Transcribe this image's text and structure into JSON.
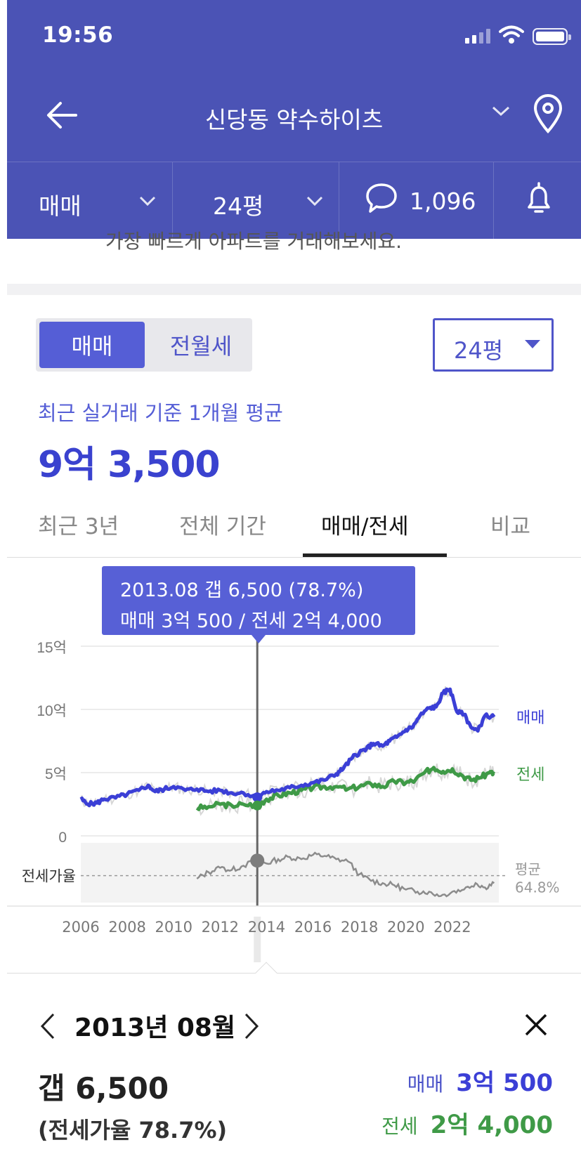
{
  "status_bar": {
    "time": "19:56"
  },
  "header": {
    "title": "신당동 약수하이츠",
    "filters": {
      "deal_type": "매매",
      "size": "24평",
      "comments": "1,096"
    }
  },
  "banner_text": "가장 빠르게 아파트를 거래해보세요.",
  "toggle": {
    "active": "매매",
    "inactive": "전월세"
  },
  "size_select": "24평",
  "summary": {
    "caption": "최근 실거래 기준 1개월 평균",
    "price": "9억 3,500"
  },
  "tabs": [
    "최근 3년",
    "전체 기간",
    "매매/전세",
    "비교"
  ],
  "active_tab": "매매/전세",
  "tooltip": {
    "line1": "2013.08  갭 6,500 (78.7%)",
    "line2": "매매 3억 500 / 전세 2억 4,000"
  },
  "colors": {
    "sale": "#3b3fd6",
    "jeonse": "#3f9a47",
    "ratio": "#8c8c8c",
    "accent": "#4b53b5"
  },
  "chart_data": {
    "type": "line",
    "y_tick_labels": [
      "15억",
      "10억",
      "5억",
      "0"
    ],
    "ylim": [
      0,
      15
    ],
    "x_tick_labels": [
      "2006",
      "2008",
      "2010",
      "2012",
      "2014",
      "2016",
      "2018",
      "2020",
      "2022"
    ],
    "xlim": [
      2006.0,
      2024.0
    ],
    "series": [
      {
        "name": "매매",
        "unit": "억",
        "points": [
          [
            2006.0,
            2.9
          ],
          [
            2006.3,
            2.5
          ],
          [
            2006.7,
            2.6
          ],
          [
            2007.0,
            2.9
          ],
          [
            2007.5,
            3.0
          ],
          [
            2008.0,
            3.3
          ],
          [
            2008.5,
            3.6
          ],
          [
            2008.9,
            4.0
          ],
          [
            2009.2,
            3.5
          ],
          [
            2009.6,
            3.7
          ],
          [
            2010.0,
            3.9
          ],
          [
            2010.5,
            3.6
          ],
          [
            2011.0,
            3.7
          ],
          [
            2011.5,
            3.5
          ],
          [
            2012.0,
            3.6
          ],
          [
            2012.5,
            3.4
          ],
          [
            2013.0,
            3.4
          ],
          [
            2013.6,
            3.05
          ],
          [
            2014.0,
            3.5
          ],
          [
            2014.5,
            3.6
          ],
          [
            2015.0,
            3.8
          ],
          [
            2015.5,
            4.0
          ],
          [
            2016.0,
            4.2
          ],
          [
            2016.5,
            4.4
          ],
          [
            2017.0,
            4.9
          ],
          [
            2017.3,
            5.3
          ],
          [
            2017.7,
            6.2
          ],
          [
            2018.0,
            6.6
          ],
          [
            2018.3,
            6.9
          ],
          [
            2018.6,
            7.3
          ],
          [
            2019.0,
            7.1
          ],
          [
            2019.3,
            7.5
          ],
          [
            2019.6,
            7.8
          ],
          [
            2020.0,
            8.4
          ],
          [
            2020.3,
            8.6
          ],
          [
            2020.6,
            9.5
          ],
          [
            2021.0,
            10.1
          ],
          [
            2021.3,
            10.2
          ],
          [
            2021.6,
            11.3
          ],
          [
            2021.9,
            11.6
          ],
          [
            2022.2,
            9.8
          ],
          [
            2022.5,
            9.6
          ],
          [
            2022.8,
            8.6
          ],
          [
            2023.1,
            8.3
          ],
          [
            2023.4,
            9.5
          ],
          [
            2023.8,
            9.4
          ]
        ]
      },
      {
        "name": "전세",
        "unit": "억",
        "points": [
          [
            2011.0,
            2.2
          ],
          [
            2011.5,
            2.3
          ],
          [
            2012.0,
            2.5
          ],
          [
            2012.5,
            2.4
          ],
          [
            2013.0,
            2.5
          ],
          [
            2013.6,
            2.4
          ],
          [
            2014.0,
            2.9
          ],
          [
            2014.5,
            3.2
          ],
          [
            2015.0,
            3.4
          ],
          [
            2015.5,
            3.6
          ],
          [
            2016.0,
            3.8
          ],
          [
            2016.5,
            3.9
          ],
          [
            2017.0,
            3.9
          ],
          [
            2017.5,
            3.7
          ],
          [
            2018.0,
            3.9
          ],
          [
            2018.5,
            4.1
          ],
          [
            2019.0,
            3.9
          ],
          [
            2019.5,
            4.3
          ],
          [
            2020.0,
            4.2
          ],
          [
            2020.4,
            4.4
          ],
          [
            2020.8,
            5.0
          ],
          [
            2021.2,
            5.4
          ],
          [
            2021.6,
            5.1
          ],
          [
            2022.0,
            5.3
          ],
          [
            2022.4,
            4.8
          ],
          [
            2022.8,
            4.4
          ],
          [
            2023.2,
            4.6
          ],
          [
            2023.6,
            5.0
          ],
          [
            2023.8,
            4.9
          ]
        ]
      },
      {
        "name": "전세가율",
        "unit": "%",
        "points": [
          [
            2011.0,
            62
          ],
          [
            2011.5,
            68
          ],
          [
            2012.0,
            72
          ],
          [
            2012.5,
            70
          ],
          [
            2013.0,
            74
          ],
          [
            2013.6,
            78.7
          ],
          [
            2014.0,
            76
          ],
          [
            2014.5,
            80
          ],
          [
            2015.0,
            82
          ],
          [
            2015.5,
            80
          ],
          [
            2016.0,
            84
          ],
          [
            2016.5,
            83
          ],
          [
            2017.0,
            80
          ],
          [
            2017.5,
            78
          ],
          [
            2018.0,
            66
          ],
          [
            2018.5,
            60
          ],
          [
            2019.0,
            58
          ],
          [
            2019.5,
            56
          ],
          [
            2020.0,
            52
          ],
          [
            2020.5,
            50
          ],
          [
            2021.0,
            50
          ],
          [
            2021.5,
            46
          ],
          [
            2022.0,
            50
          ],
          [
            2022.5,
            52
          ],
          [
            2023.0,
            58
          ],
          [
            2023.4,
            54
          ],
          [
            2023.8,
            58
          ]
        ]
      }
    ],
    "series_labels": {
      "sale": "매매",
      "jeonse": "전세"
    },
    "ratio_band": {
      "label": "전세가율",
      "avg_label": "평균",
      "avg_value": "64.8%",
      "avg": 64.8,
      "ylim": [
        40,
        95
      ]
    },
    "selected_x": 2013.6
  },
  "detail": {
    "date": "2013년 08월",
    "gap": "갭 6,500",
    "ratio": "(전세가율 78.7%)",
    "sale_label": "매매",
    "sale_value": "3억 500",
    "jeonse_label": "전세",
    "jeonse_value": "2억 4,000"
  }
}
